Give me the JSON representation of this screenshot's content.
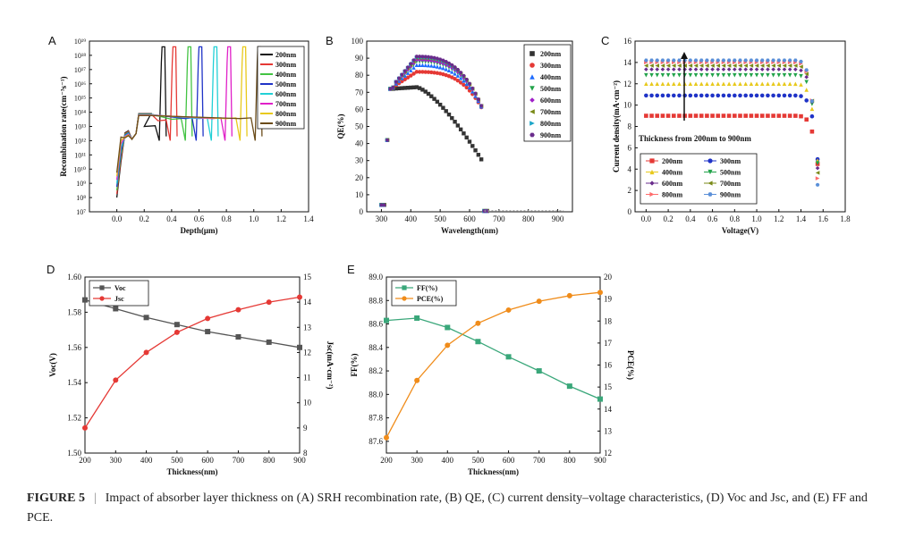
{
  "figure": {
    "caption_label": "FIGURE 5",
    "caption_sep": "|",
    "caption_text": "Impact of absorber layer thickness on (A) SRH recombination rate, (B) QE, (C) current density–voltage characteristics, (D) Voc and Jsc, and (E) FF and PCE."
  },
  "chart_data": [
    {
      "panel": "A",
      "type": "line",
      "title": "",
      "xlabel": "Depth(μm)",
      "ylabel": "Recombination rate(cm⁻³s⁻¹)",
      "xlim": [
        -0.2,
        1.4
      ],
      "xticks": [
        "0.0",
        "0.2",
        "0.4",
        "0.6",
        "0.8",
        "1.0",
        "1.2",
        "1.4"
      ],
      "ylim_log10": [
        7,
        19
      ],
      "yticks": [
        "10⁷",
        "10⁸",
        "10⁹",
        "10¹⁰",
        "10¹¹",
        "10¹²",
        "10¹³",
        "10¹⁴",
        "10¹⁵",
        "10¹⁶",
        "10¹⁷",
        "10¹⁸",
        "10¹⁹"
      ],
      "legend_position": "top-right",
      "series": [
        {
          "name": "200nm",
          "color": "#111111",
          "plateau_log10": 13.0,
          "peak_x": 0.33,
          "dip_x": 0.2
        },
        {
          "name": "300nm",
          "color": "#e53935",
          "plateau_log10": 13.4,
          "peak_x": 0.41,
          "dip_x": 0.3
        },
        {
          "name": "400nm",
          "color": "#43c343",
          "plateau_log10": 13.5,
          "peak_x": 0.52,
          "dip_x": 0.4
        },
        {
          "name": "500nm",
          "color": "#1f33c7",
          "plateau_log10": 13.55,
          "peak_x": 0.6,
          "dip_x": 0.5
        },
        {
          "name": "600nm",
          "color": "#22d0d6",
          "plateau_log10": 13.55,
          "peak_x": 0.71,
          "dip_x": 0.6
        },
        {
          "name": "700nm",
          "color": "#e020c8",
          "plateau_log10": 13.55,
          "peak_x": 0.81,
          "dip_x": 0.7
        },
        {
          "name": "800nm",
          "color": "#e8c91c",
          "plateau_log10": 13.55,
          "peak_x": 0.92,
          "dip_x": 0.8
        },
        {
          "name": "900nm",
          "color": "#6b4c1a",
          "plateau_log10": 13.55,
          "peak_x": 1.03,
          "dip_x": 0.9
        }
      ]
    },
    {
      "panel": "B",
      "type": "scatter",
      "title": "",
      "xlabel": "Wavelength(nm)",
      "ylabel": "QE(%)",
      "xlim": [
        250,
        950
      ],
      "xticks": [
        300,
        400,
        500,
        600,
        700,
        800,
        900
      ],
      "ylim": [
        0,
        100
      ],
      "yticks": [
        0,
        10,
        20,
        30,
        40,
        50,
        60,
        70,
        80,
        90,
        100
      ],
      "legend_position": "top-right",
      "series": [
        {
          "name": "200nm",
          "color": "#333333",
          "marker": "square",
          "peak": 73,
          "cutoff": 650
        },
        {
          "name": "300nm",
          "color": "#e53935",
          "marker": "circle",
          "peak": 82,
          "cutoff": 650
        },
        {
          "name": "400nm",
          "color": "#1e6cff",
          "marker": "triangle-up",
          "peak": 86,
          "cutoff": 650
        },
        {
          "name": "500nm",
          "color": "#22a34a",
          "marker": "triangle-down",
          "peak": 88,
          "cutoff": 650
        },
        {
          "name": "600nm",
          "color": "#a020c8",
          "marker": "diamond",
          "peak": 89,
          "cutoff": 650
        },
        {
          "name": "700nm",
          "color": "#7a8a18",
          "marker": "triangle-left",
          "peak": 90,
          "cutoff": 650
        },
        {
          "name": "800nm",
          "color": "#1aa5c8",
          "marker": "triangle-right",
          "peak": 90.5,
          "cutoff": 650
        },
        {
          "name": "900nm",
          "color": "#6a2c8c",
          "marker": "hexagon",
          "peak": 91,
          "cutoff": 650
        }
      ]
    },
    {
      "panel": "C",
      "type": "scatter",
      "title": "",
      "xlabel": "Voltage(V)",
      "ylabel": "Current density(mA·cm⁻²)",
      "xlim": [
        -0.1,
        1.8
      ],
      "xticks": [
        "0.0",
        "0.2",
        "0.4",
        "0.6",
        "0.8",
        "1.0",
        "1.2",
        "1.4",
        "1.6",
        "1.8"
      ],
      "ylim": [
        0,
        16
      ],
      "yticks": [
        0,
        2,
        4,
        6,
        8,
        10,
        12,
        14,
        16
      ],
      "annotation": "Thickness from 200nm to 900nm",
      "legend_position": "bottom-left",
      "series": [
        {
          "name": "200nm",
          "color": "#e53935",
          "marker": "square",
          "jsc": 9.0,
          "voc": 1.587
        },
        {
          "name": "300nm",
          "color": "#1f33c7",
          "marker": "circle",
          "jsc": 10.9,
          "voc": 1.582
        },
        {
          "name": "400nm",
          "color": "#e8c91c",
          "marker": "triangle-up",
          "jsc": 12.0,
          "voc": 1.577
        },
        {
          "name": "500nm",
          "color": "#22a34a",
          "marker": "triangle-down",
          "jsc": 12.8,
          "voc": 1.573
        },
        {
          "name": "600nm",
          "color": "#6a2c8c",
          "marker": "diamond",
          "jsc": 13.35,
          "voc": 1.569
        },
        {
          "name": "700nm",
          "color": "#7a8a18",
          "marker": "triangle-left",
          "jsc": 13.7,
          "voc": 1.566
        },
        {
          "name": "800nm",
          "color": "#ff6b6b",
          "marker": "triangle-right",
          "jsc": 14.0,
          "voc": 1.563
        },
        {
          "name": "900nm",
          "color": "#5a8fd8",
          "marker": "hexagon",
          "jsc": 14.2,
          "voc": 1.56
        }
      ]
    },
    {
      "panel": "D",
      "type": "line",
      "title": "",
      "xlabel": "Thickness(nm)",
      "ylabel_left": "Voc(V)",
      "ylabel_right": "Jsc(mA·cm⁻²)",
      "x": [
        200,
        300,
        400,
        500,
        600,
        700,
        800,
        900
      ],
      "xticks": [
        200,
        300,
        400,
        500,
        600,
        700,
        800,
        900
      ],
      "ylim_left": [
        1.5,
        1.6
      ],
      "yticks_left": [
        "1.50",
        "1.52",
        "1.54",
        "1.56",
        "1.58",
        "1.60"
      ],
      "ylim_right": [
        8,
        15
      ],
      "yticks_right": [
        8,
        9,
        10,
        11,
        12,
        13,
        14,
        15
      ],
      "legend_position": "top-left",
      "series": [
        {
          "name": "Voc",
          "axis": "left",
          "color": "#555555",
          "marker": "square",
          "values": [
            1.587,
            1.582,
            1.577,
            1.573,
            1.569,
            1.566,
            1.563,
            1.56
          ]
        },
        {
          "name": "Jsc",
          "axis": "right",
          "color": "#e53935",
          "marker": "circle",
          "values": [
            9.0,
            10.9,
            12.0,
            12.8,
            13.35,
            13.7,
            14.0,
            14.2
          ]
        }
      ]
    },
    {
      "panel": "E",
      "type": "line",
      "title": "",
      "xlabel": "Thickness(nm)",
      "ylabel_left": "FF(%)",
      "ylabel_right": "PCE(%)",
      "x": [
        200,
        300,
        400,
        500,
        600,
        700,
        800,
        900
      ],
      "xticks": [
        200,
        300,
        400,
        500,
        600,
        700,
        800,
        900
      ],
      "ylim_left": [
        87.5,
        89.0
      ],
      "yticks_left": [
        "87.6",
        "87.8",
        "88.0",
        "88.2",
        "88.4",
        "88.6",
        "88.8",
        "89.0"
      ],
      "ylim_right": [
        12,
        20
      ],
      "yticks_right": [
        12,
        13,
        14,
        15,
        16,
        17,
        18,
        19,
        20
      ],
      "legend_position": "top-left",
      "series": [
        {
          "name": "FF(%)",
          "axis": "left",
          "color": "#3aa77a",
          "marker": "square",
          "values": [
            88.63,
            88.65,
            88.57,
            88.45,
            88.32,
            88.2,
            88.07,
            87.96
          ]
        },
        {
          "name": "PCE(%)",
          "axis": "right",
          "color": "#f08c1a",
          "marker": "circle",
          "values": [
            12.7,
            15.3,
            16.9,
            17.9,
            18.5,
            18.9,
            19.15,
            19.3
          ]
        }
      ]
    }
  ]
}
